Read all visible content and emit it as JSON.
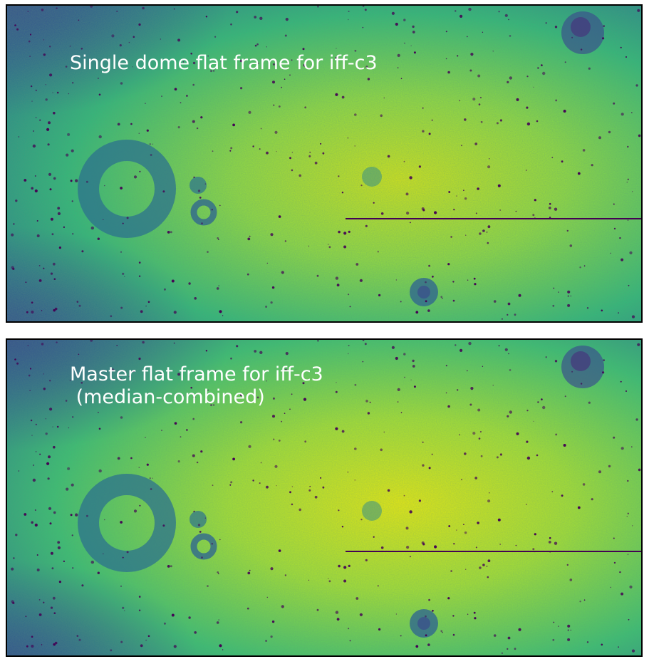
{
  "panels": [
    {
      "title": "Single dome flat frame for iff-c3"
    },
    {
      "title": "Master flat frame for iff-c3\n (median-combined)"
    }
  ],
  "colormap": "viridis",
  "colors": {
    "low": "#440154",
    "mid": "#21918c",
    "high": "#fde725",
    "frame": "#000000"
  }
}
